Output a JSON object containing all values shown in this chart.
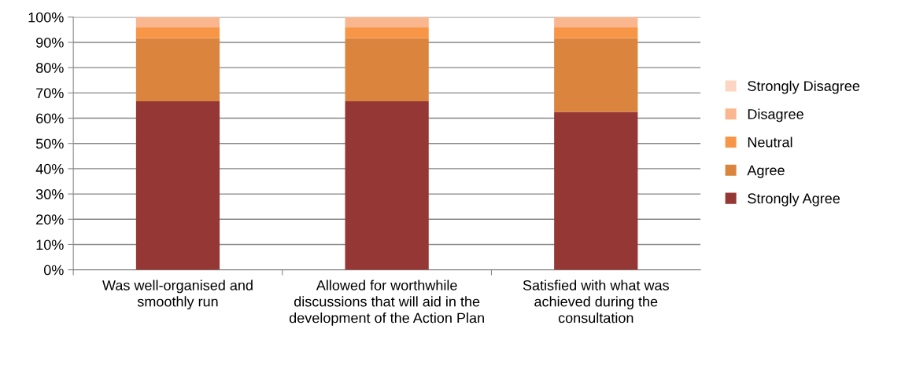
{
  "chart_data": {
    "type": "bar",
    "stacked": true,
    "categories": [
      "Was well-organised and smoothly run",
      "Allowed for worthwhile discussions that will aid in the development of the Action Plan",
      "Satisfied with what was achieved during the consultation"
    ],
    "series": [
      {
        "name": "Strongly Agree",
        "color": "#953735",
        "values": [
          66.7,
          66.7,
          62.5
        ]
      },
      {
        "name": "Agree",
        "color": "#db843d",
        "values": [
          25,
          25,
          29.2
        ]
      },
      {
        "name": "Neutral",
        "color": "#f79646",
        "values": [
          4.2,
          4.2,
          4.2
        ]
      },
      {
        "name": "Disagree",
        "color": "#fab68f",
        "values": [
          4.1,
          4.1,
          4.1
        ]
      },
      {
        "name": "Strongly Disagree",
        "color": "#fcd5c4",
        "values": [
          0,
          0,
          0
        ]
      }
    ],
    "ylim": [
      0,
      100
    ],
    "yticks": [
      {
        "value": 0,
        "label": "0%"
      },
      {
        "value": 10,
        "label": "10%"
      },
      {
        "value": 20,
        "label": "20%"
      },
      {
        "value": 30,
        "label": "30%"
      },
      {
        "value": 40,
        "label": "40%"
      },
      {
        "value": 50,
        "label": "50%"
      },
      {
        "value": 60,
        "label": "60%"
      },
      {
        "value": 70,
        "label": "70%"
      },
      {
        "value": 80,
        "label": "80%"
      },
      {
        "value": 90,
        "label": "90%"
      },
      {
        "value": 100,
        "label": "100%"
      }
    ],
    "grid": "y",
    "legend": "right"
  }
}
